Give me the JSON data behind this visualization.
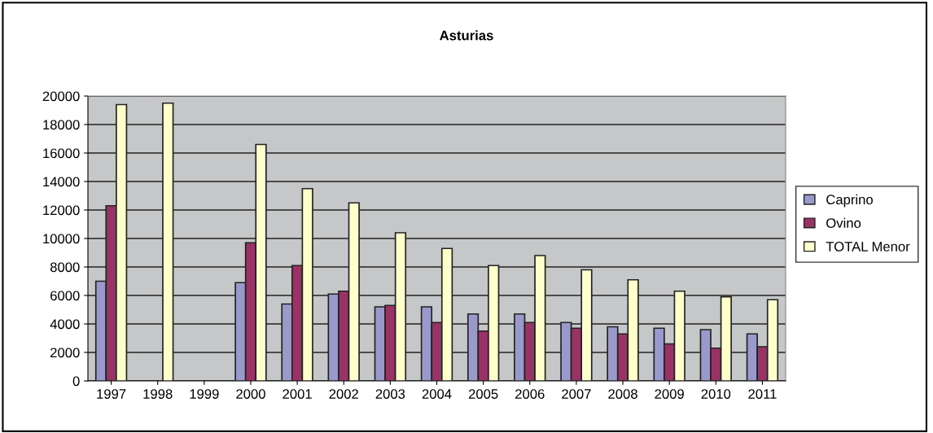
{
  "chart_data": {
    "type": "bar",
    "title": "Asturias",
    "categories": [
      "1997",
      "1998",
      "1999",
      "2000",
      "2001",
      "2002",
      "2003",
      "2004",
      "2005",
      "2006",
      "2007",
      "2008",
      "2009",
      "2010",
      "2011"
    ],
    "series": [
      {
        "name": "Caprino",
        "color": "#9999cc",
        "values": [
          7000,
          null,
          null,
          6900,
          5400,
          6100,
          5200,
          5200,
          4700,
          4700,
          4100,
          3800,
          3700,
          3600,
          3300
        ]
      },
      {
        "name": "Ovino",
        "color": "#993366",
        "values": [
          12300,
          null,
          null,
          9700,
          8100,
          6300,
          5300,
          4100,
          3500,
          4100,
          3700,
          3300,
          2600,
          2300,
          2400
        ]
      },
      {
        "name": "TOTAL Menor",
        "color": "#ffffcc",
        "values": [
          19400,
          19500,
          null,
          16600,
          13500,
          12500,
          10400,
          9300,
          8100,
          8800,
          7800,
          7100,
          6300,
          5900,
          5700
        ]
      }
    ],
    "ylim": [
      0,
      20000
    ],
    "yticks": [
      0,
      2000,
      4000,
      6000,
      8000,
      10000,
      12000,
      14000,
      16000,
      18000,
      20000
    ],
    "grid": "y",
    "legend": "right"
  }
}
